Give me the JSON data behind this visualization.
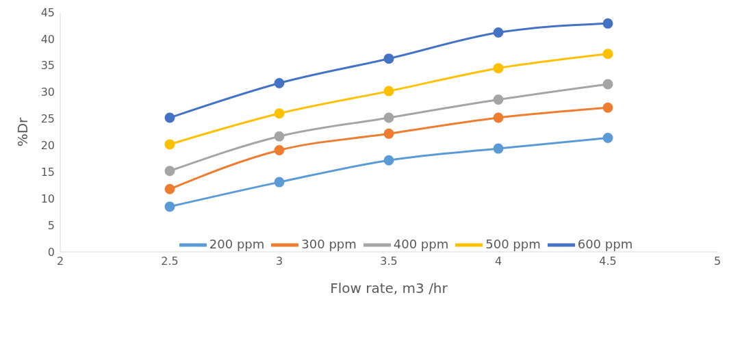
{
  "chart_data": {
    "type": "line",
    "xlabel": "Flow rate, m3 /hr",
    "ylabel": "%Dr",
    "x": [
      2.5,
      3,
      3.5,
      4,
      4.5
    ],
    "series": [
      {
        "name": "200 ppm",
        "color": "#5b9bd5",
        "values": [
          8.5,
          13.1,
          17.2,
          19.4,
          21.4
        ]
      },
      {
        "name": "300 ppm",
        "color": "#ed7d31",
        "values": [
          11.8,
          19.1,
          22.2,
          25.2,
          27.1
        ]
      },
      {
        "name": "400 ppm",
        "color": "#a5a5a5",
        "values": [
          15.2,
          21.7,
          25.2,
          28.6,
          31.5
        ]
      },
      {
        "name": "500 ppm",
        "color": "#ffc000",
        "values": [
          20.2,
          26.0,
          30.2,
          34.5,
          37.2
        ]
      },
      {
        "name": "600 ppm",
        "color": "#4472c4",
        "values": [
          25.2,
          31.7,
          36.3,
          41.2,
          42.9
        ]
      }
    ],
    "xlim": [
      2,
      5
    ],
    "xticks": [
      2,
      2.5,
      3,
      3.5,
      4,
      4.5,
      5
    ],
    "ylim": [
      0,
      45
    ],
    "yticks": [
      0,
      5,
      10,
      15,
      20,
      25,
      30,
      35,
      40,
      45
    ],
    "grid": false,
    "legend": "bottom",
    "marker": "circle",
    "line_style": "solid"
  }
}
